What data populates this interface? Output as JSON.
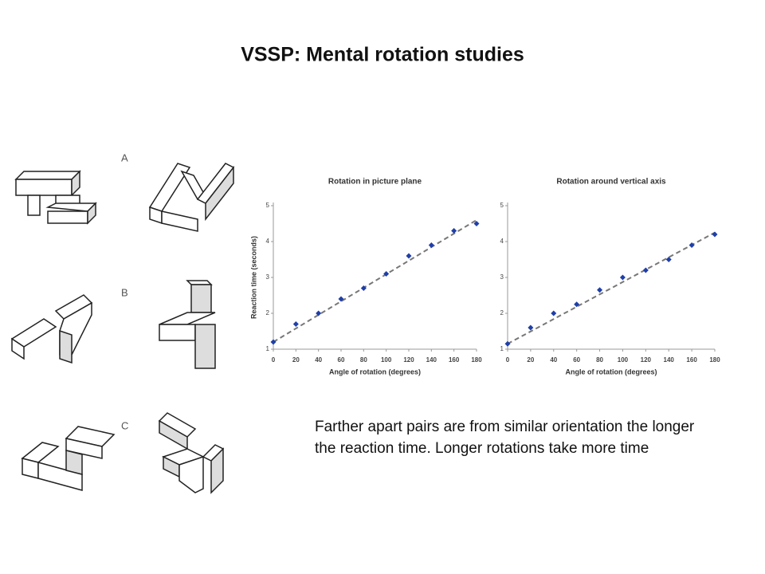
{
  "title": "VSSP: Mental rotation studies",
  "figure_labels": [
    "A",
    "B",
    "C"
  ],
  "caption": "Farther apart pairs are from similar orientation the longer the reaction time. Longer rotations take more time",
  "chart_data": [
    {
      "type": "scatter",
      "title": "Rotation in picture plane",
      "x_label": "Angle of rotation (degrees)",
      "y_label": "Reaction time (seconds)",
      "series": [
        {
          "color": "#1f3fa8",
          "x": [
            0,
            20,
            40,
            60,
            80,
            100,
            120,
            140,
            160,
            180
          ],
          "values": [
            1.2,
            1.7,
            2.0,
            2.4,
            2.7,
            3.1,
            3.6,
            3.9,
            4.3,
            4.5
          ]
        }
      ],
      "trend": {
        "color": "#777777",
        "x": [
          0,
          180
        ],
        "values": [
          1.2,
          4.6
        ]
      },
      "xlim": [
        0,
        180
      ],
      "xticks": [
        0,
        20,
        40,
        60,
        80,
        100,
        120,
        140,
        160,
        180
      ],
      "ylim": [
        1,
        5
      ],
      "yticks": [
        1,
        2,
        3,
        4,
        5
      ]
    },
    {
      "type": "scatter",
      "title": "Rotation around vertical axis",
      "x_label": "Angle of rotation (degrees)",
      "series": [
        {
          "color": "#1f3fa8",
          "x": [
            0,
            20,
            40,
            60,
            80,
            100,
            120,
            140,
            160,
            180
          ],
          "values": [
            1.15,
            1.6,
            2.0,
            2.25,
            2.65,
            3.0,
            3.2,
            3.5,
            3.9,
            4.2
          ]
        }
      ],
      "trend": {
        "color": "#777777",
        "x": [
          0,
          180
        ],
        "values": [
          1.15,
          4.25
        ]
      },
      "xlim": [
        0,
        180
      ],
      "xticks": [
        0,
        20,
        40,
        60,
        80,
        100,
        120,
        140,
        160,
        180
      ],
      "ylim": [
        1,
        5
      ],
      "yticks": [
        1,
        2,
        3,
        4,
        5
      ]
    }
  ]
}
